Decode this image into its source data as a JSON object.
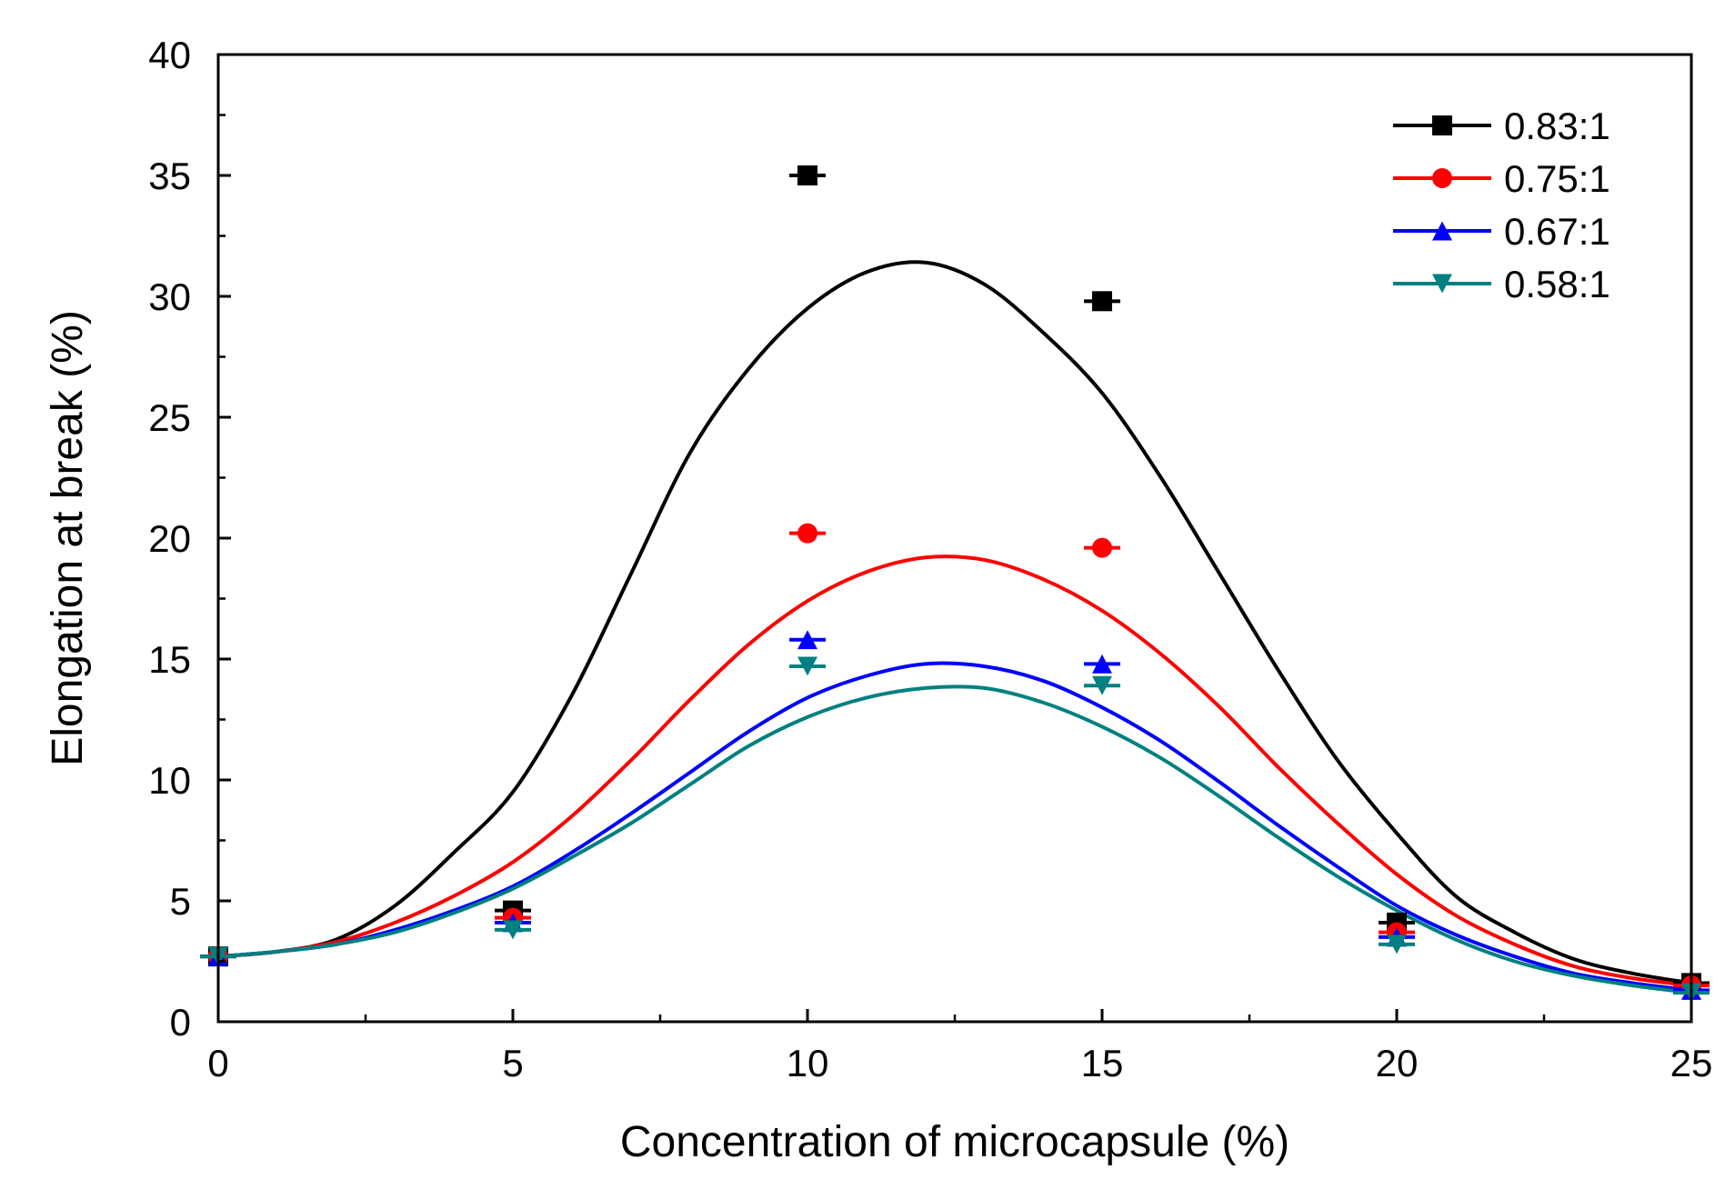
{
  "chart_data": {
    "type": "scatter",
    "title": "",
    "xlabel": "Concentration of microcapsule (%)",
    "ylabel": "Elongation at break (%)",
    "xlim": [
      0,
      25
    ],
    "ylim": [
      0,
      40
    ],
    "xticks": [
      0,
      5,
      10,
      15,
      20,
      25
    ],
    "yticks": [
      0,
      5,
      10,
      15,
      20,
      25,
      30,
      35,
      40
    ],
    "grid": false,
    "legend_position": "top-right",
    "x": [
      0,
      5,
      10,
      15,
      20,
      25
    ],
    "series": [
      {
        "name": "0.83:1",
        "marker": "square",
        "color": "#000000",
        "values": [
          2.7,
          4.6,
          35.0,
          29.8,
          4.1,
          1.6
        ],
        "fit_curve": [
          [
            0,
            2.7
          ],
          [
            1,
            2.9
          ],
          [
            2,
            3.4
          ],
          [
            3,
            4.8
          ],
          [
            4,
            7.0
          ],
          [
            5,
            9.5
          ],
          [
            6,
            13.5
          ],
          [
            7,
            18.5
          ],
          [
            8,
            23.5
          ],
          [
            9,
            27.0
          ],
          [
            10,
            29.5
          ],
          [
            11,
            31.0
          ],
          [
            12,
            31.4
          ],
          [
            13,
            30.5
          ],
          [
            14,
            28.5
          ],
          [
            15,
            26.0
          ],
          [
            16,
            22.5
          ],
          [
            17,
            18.5
          ],
          [
            18,
            14.5
          ],
          [
            19,
            10.8
          ],
          [
            20,
            7.8
          ],
          [
            21,
            5.2
          ],
          [
            22,
            3.7
          ],
          [
            23,
            2.6
          ],
          [
            24,
            2.0
          ],
          [
            25,
            1.6
          ]
        ]
      },
      {
        "name": "0.75:1",
        "marker": "circle",
        "color": "#ff0000",
        "values": [
          2.7,
          4.3,
          20.2,
          19.6,
          3.7,
          1.5
        ],
        "fit_curve": [
          [
            0,
            2.7
          ],
          [
            1,
            2.9
          ],
          [
            2,
            3.3
          ],
          [
            3,
            4.1
          ],
          [
            4,
            5.2
          ],
          [
            5,
            6.6
          ],
          [
            6,
            8.5
          ],
          [
            7,
            10.8
          ],
          [
            8,
            13.3
          ],
          [
            9,
            15.6
          ],
          [
            10,
            17.4
          ],
          [
            11,
            18.6
          ],
          [
            12,
            19.2
          ],
          [
            13,
            19.1
          ],
          [
            14,
            18.3
          ],
          [
            15,
            17.0
          ],
          [
            16,
            15.2
          ],
          [
            17,
            13.0
          ],
          [
            18,
            10.5
          ],
          [
            19,
            8.2
          ],
          [
            20,
            6.1
          ],
          [
            21,
            4.4
          ],
          [
            22,
            3.2
          ],
          [
            23,
            2.3
          ],
          [
            24,
            1.8
          ],
          [
            25,
            1.5
          ]
        ]
      },
      {
        "name": "0.67:1",
        "marker": "triangle-up",
        "color": "#0000ff",
        "values": [
          2.7,
          4.1,
          15.8,
          14.8,
          3.5,
          1.3
        ],
        "fit_curve": [
          [
            0,
            2.7
          ],
          [
            1,
            2.9
          ],
          [
            2,
            3.2
          ],
          [
            3,
            3.8
          ],
          [
            4,
            4.6
          ],
          [
            5,
            5.6
          ],
          [
            6,
            7.0
          ],
          [
            7,
            8.6
          ],
          [
            8,
            10.3
          ],
          [
            9,
            12.0
          ],
          [
            10,
            13.4
          ],
          [
            11,
            14.3
          ],
          [
            12,
            14.8
          ],
          [
            13,
            14.7
          ],
          [
            14,
            14.1
          ],
          [
            15,
            13.0
          ],
          [
            16,
            11.6
          ],
          [
            17,
            9.9
          ],
          [
            18,
            8.1
          ],
          [
            19,
            6.4
          ],
          [
            20,
            4.8
          ],
          [
            21,
            3.6
          ],
          [
            22,
            2.7
          ],
          [
            23,
            2.0
          ],
          [
            24,
            1.6
          ],
          [
            25,
            1.3
          ]
        ]
      },
      {
        "name": "0.58:1",
        "marker": "triangle-down",
        "color": "#008080",
        "values": [
          2.7,
          3.8,
          14.7,
          13.9,
          3.2,
          1.2
        ],
        "fit_curve": [
          [
            0,
            2.7
          ],
          [
            1,
            2.9
          ],
          [
            2,
            3.2
          ],
          [
            3,
            3.7
          ],
          [
            4,
            4.5
          ],
          [
            5,
            5.5
          ],
          [
            6,
            6.8
          ],
          [
            7,
            8.2
          ],
          [
            8,
            9.8
          ],
          [
            9,
            11.4
          ],
          [
            10,
            12.6
          ],
          [
            11,
            13.4
          ],
          [
            12,
            13.8
          ],
          [
            13,
            13.8
          ],
          [
            14,
            13.2
          ],
          [
            15,
            12.2
          ],
          [
            16,
            10.9
          ],
          [
            17,
            9.3
          ],
          [
            18,
            7.6
          ],
          [
            19,
            6.0
          ],
          [
            20,
            4.6
          ],
          [
            21,
            3.4
          ],
          [
            22,
            2.5
          ],
          [
            23,
            1.9
          ],
          [
            24,
            1.5
          ],
          [
            25,
            1.2
          ]
        ]
      }
    ]
  }
}
